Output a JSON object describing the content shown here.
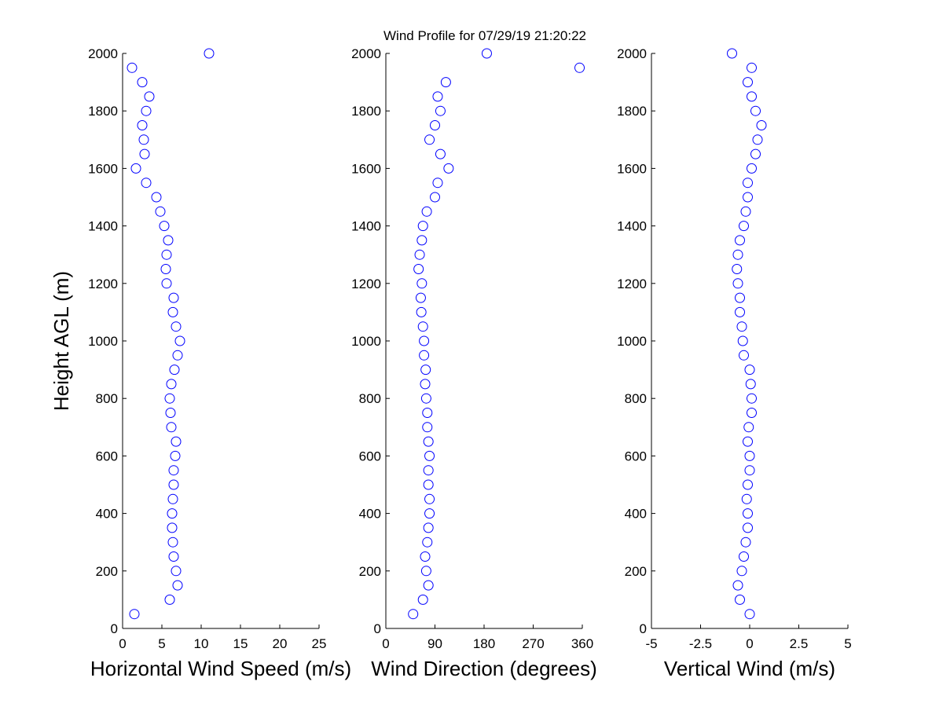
{
  "chart_data": [
    {
      "type": "scatter",
      "title": "Wind Profile for  07/29/19 21:20:22",
      "x_label": "Horizontal Wind Speed (m/s)",
      "y_label": "Height AGL (m)",
      "color": "#0000ff",
      "xlim": [
        0,
        25
      ],
      "xticks": [
        0,
        5,
        10,
        15,
        20,
        25
      ],
      "ylim": [
        0,
        2000
      ],
      "yticks": [
        0,
        200,
        400,
        600,
        800,
        1000,
        1200,
        1400,
        1600,
        1800,
        2000
      ],
      "x": [
        1.5,
        6.0,
        7.0,
        6.8,
        6.5,
        6.4,
        6.3,
        6.3,
        6.4,
        6.5,
        6.5,
        6.7,
        6.8,
        6.2,
        6.1,
        6.0,
        6.2,
        6.6,
        7.0,
        7.3,
        6.8,
        6.4,
        6.5,
        5.6,
        5.5,
        5.6,
        5.8,
        5.3,
        4.8,
        4.3,
        3.0,
        1.7,
        2.8,
        2.7,
        2.5,
        3.0,
        3.4,
        2.5,
        1.2,
        11.0
      ],
      "y": [
        50,
        100,
        150,
        200,
        250,
        300,
        350,
        400,
        450,
        500,
        550,
        600,
        650,
        700,
        750,
        800,
        850,
        900,
        950,
        1000,
        1050,
        1100,
        1150,
        1200,
        1250,
        1300,
        1350,
        1400,
        1450,
        1500,
        1550,
        1600,
        1650,
        1700,
        1750,
        1800,
        1850,
        1900,
        1950,
        2000
      ]
    },
    {
      "type": "scatter",
      "x_label": "Wind Direction (degrees)",
      "color": "#0000ff",
      "xlim": [
        0,
        360
      ],
      "xticks": [
        0,
        90,
        180,
        270,
        360
      ],
      "ylim": [
        0,
        2000
      ],
      "yticks": [
        0,
        200,
        400,
        600,
        800,
        1000,
        1200,
        1400,
        1600,
        1800,
        2000
      ],
      "x": [
        50,
        68,
        78,
        74,
        72,
        76,
        78,
        80,
        80,
        78,
        78,
        80,
        78,
        76,
        76,
        74,
        72,
        73,
        70,
        70,
        68,
        65,
        64,
        66,
        60,
        62,
        66,
        68,
        75,
        90,
        95,
        115,
        100,
        80,
        90,
        100,
        95,
        110,
        355,
        185
      ],
      "y": [
        50,
        100,
        150,
        200,
        250,
        300,
        350,
        400,
        450,
        500,
        550,
        600,
        650,
        700,
        750,
        800,
        850,
        900,
        950,
        1000,
        1050,
        1100,
        1150,
        1200,
        1250,
        1300,
        1350,
        1400,
        1450,
        1500,
        1550,
        1600,
        1650,
        1700,
        1750,
        1800,
        1850,
        1900,
        1950,
        2000
      ]
    },
    {
      "type": "scatter",
      "x_label": "Vertical Wind (m/s)",
      "color": "#0000ff",
      "xlim": [
        -5,
        5
      ],
      "xticks": [
        -5,
        -2.5,
        0,
        2.5,
        5
      ],
      "ylim": [
        0,
        2000
      ],
      "yticks": [
        0,
        200,
        400,
        600,
        800,
        1000,
        1200,
        1400,
        1600,
        1800,
        2000
      ],
      "x": [
        0,
        -0.5,
        -0.6,
        -0.4,
        -0.3,
        -0.2,
        -0.1,
        -0.1,
        -0.15,
        -0.1,
        0,
        0,
        -0.1,
        -0.05,
        0.1,
        0.1,
        0.05,
        0,
        -0.3,
        -0.35,
        -0.4,
        -0.5,
        -0.5,
        -0.6,
        -0.65,
        -0.6,
        -0.5,
        -0.3,
        -0.2,
        -0.1,
        -0.1,
        0.1,
        0.3,
        0.4,
        0.6,
        0.3,
        0.1,
        -0.1,
        0.1,
        -0.9
      ],
      "y": [
        50,
        100,
        150,
        200,
        250,
        300,
        350,
        400,
        450,
        500,
        550,
        600,
        650,
        700,
        750,
        800,
        850,
        900,
        950,
        1000,
        1050,
        1100,
        1150,
        1200,
        1250,
        1300,
        1350,
        1400,
        1450,
        1500,
        1550,
        1600,
        1650,
        1700,
        1750,
        1800,
        1850,
        1900,
        1950,
        2000
      ]
    }
  ]
}
